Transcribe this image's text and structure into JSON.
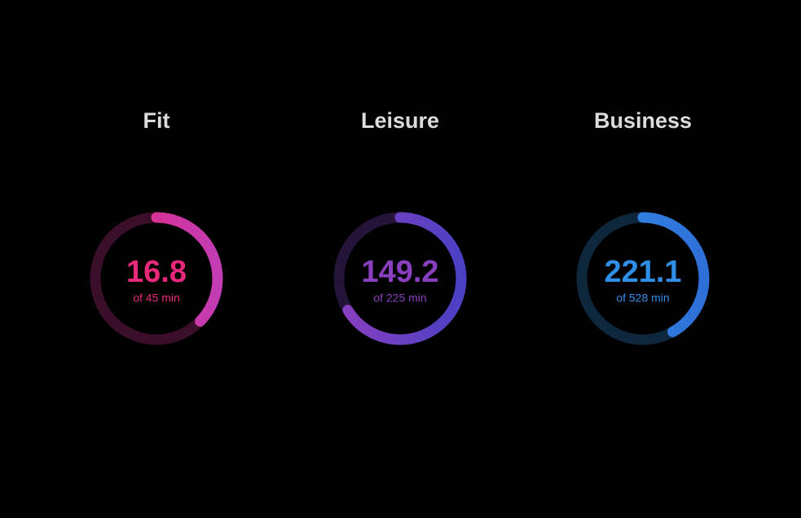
{
  "gauges": [
    {
      "title": "Fit",
      "value": 16.8,
      "goal": 45,
      "goal_label": "of 45 min",
      "color": "#e8287a",
      "color_end": "#c23cb4",
      "track_color": "#3a0f2a"
    },
    {
      "title": "Leisure",
      "value": 149.2,
      "goal": 225,
      "goal_label": "of 225 min",
      "color": "#8a3fc0",
      "color_end": "#4b40c4",
      "track_color": "#24143a"
    },
    {
      "title": "Business",
      "value": 221.1,
      "goal": 528,
      "goal_label": "of 528 min",
      "color": "#2f8fe8",
      "color_end": "#2f6fd8",
      "track_color": "#0f273d"
    }
  ]
}
